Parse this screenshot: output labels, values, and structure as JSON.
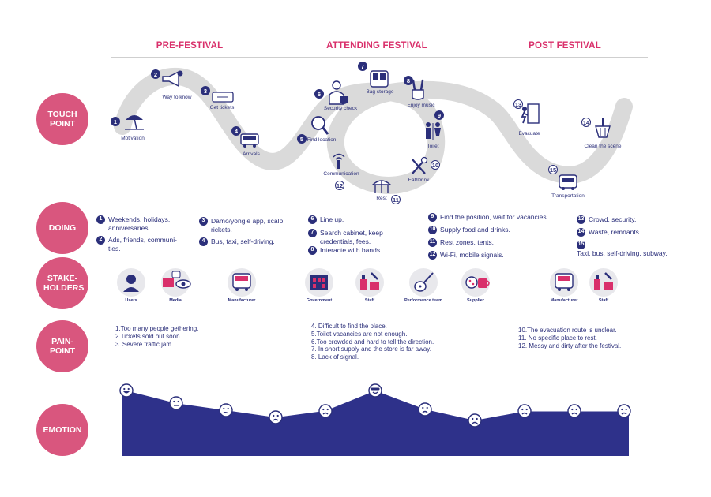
{
  "colors": {
    "accent": "#d9306b",
    "label_circle": "#d9567e",
    "navy": "#2b2f7a",
    "path_gray": "#d9d9d9"
  },
  "phases": [
    "PRE-FESTIVAL",
    "ATTENDING FESTIVAL",
    "POST FESTIVAL"
  ],
  "rows": {
    "touch_point": "TOUCH POINT",
    "doing": "DOING",
    "stakeholders": "STAKE-HOLDERS",
    "pain_point": "PAIN-POINT",
    "emotion": "EMOTION"
  },
  "touch_points": [
    {
      "n": "1",
      "label": "Motivation",
      "icon": "beach-umbrella-icon"
    },
    {
      "n": "2",
      "label": "Way to know",
      "icon": "megaphone-icon"
    },
    {
      "n": "3",
      "label": "Get tickets",
      "icon": "ticket-icon"
    },
    {
      "n": "4",
      "label": "Arrivals",
      "icon": "car-icon"
    },
    {
      "n": "5",
      "label": "Find location",
      "icon": "magnifier-icon"
    },
    {
      "n": "6",
      "label": "Security check",
      "icon": "security-guard-icon"
    },
    {
      "n": "7",
      "label": "Bag storage",
      "icon": "backpack-icon"
    },
    {
      "n": "8",
      "label": "Enjoy music",
      "icon": "rock-hand-icon"
    },
    {
      "n": "9",
      "label": "Toilet",
      "icon": "toilet-icon"
    },
    {
      "n": "10",
      "label": "Eat/Drink",
      "icon": "fork-knife-icon"
    },
    {
      "n": "11",
      "label": "Rest",
      "icon": "tent-icon"
    },
    {
      "n": "12",
      "label": "Communication",
      "icon": "antenna-icon"
    },
    {
      "n": "13",
      "label": "Evacuate",
      "icon": "exit-door-icon"
    },
    {
      "n": "14",
      "label": "Clean the scene",
      "icon": "broom-icon"
    },
    {
      "n": "15",
      "label": "Transportation",
      "icon": "bus-icon"
    }
  ],
  "doing": [
    {
      "n": "1",
      "text": "Weekends, holidays, anniversaries."
    },
    {
      "n": "2",
      "text": "Ads, friends, communi-ties."
    },
    {
      "n": "3",
      "text": "Damo/yongle app, scalp rickets."
    },
    {
      "n": "4",
      "text": "Bus, taxi, self-driving."
    },
    {
      "n": "6",
      "text": "Line up."
    },
    {
      "n": "7",
      "text": "Search cabinet, keep credentials, fees."
    },
    {
      "n": "8",
      "text": "Interacte with bands."
    },
    {
      "n": "9",
      "text": "Find the position, wait for vacancies."
    },
    {
      "n": "10",
      "text": "Supply food and drinks."
    },
    {
      "n": "11",
      "text": "Rest zones, tents."
    },
    {
      "n": "12",
      "text": "Wi-Fi, mobile signals."
    },
    {
      "n": "13",
      "text": "Crowd, security."
    },
    {
      "n": "14",
      "text": "Waste, remnants."
    },
    {
      "n": "15",
      "text": "Taxi, bus, self-driving, subway."
    }
  ],
  "stakeholders": [
    {
      "label": "Users",
      "icon": "user-icon"
    },
    {
      "label": "Media",
      "icon": "media-icon"
    },
    {
      "label": "Manufacturer",
      "icon": "bus-icon"
    },
    {
      "label": "Government",
      "icon": "government-building-icon"
    },
    {
      "label": "Staff",
      "icon": "staff-tools-icon"
    },
    {
      "label": "Performance team",
      "icon": "guitar-icon"
    },
    {
      "label": "Supplier",
      "icon": "food-supplier-icon"
    },
    {
      "label": "Manufacturer",
      "icon": "bus-icon"
    },
    {
      "label": "Staff",
      "icon": "staff-tools-icon"
    }
  ],
  "pain_points": {
    "pre": [
      "1.Too many people gethering.",
      "2.Tickets sold out soon.",
      "3. Severe traffic jam."
    ],
    "attending": [
      "4. Difficult to find the place.",
      "5.Toilet vacancies are not enough.",
      "6.Too crowded and hard to tell the direction.",
      "7. In short supply and the store is far away.",
      "8. Lack of signal."
    ],
    "post": [
      "10.The evacuation route is unclear.",
      "11. No specific place to rest.",
      "12. Messy and dirty after the festival."
    ]
  },
  "emotion": {
    "levels": [
      0.95,
      0.7,
      0.56,
      0.42,
      0.55,
      0.95,
      0.58,
      0.36,
      0.54,
      0.54,
      0.54
    ],
    "faces": [
      "happy",
      "neutral",
      "meh",
      "sad",
      "sad",
      "cool",
      "sad",
      "very-sad",
      "sad",
      "sad",
      "sad"
    ]
  }
}
